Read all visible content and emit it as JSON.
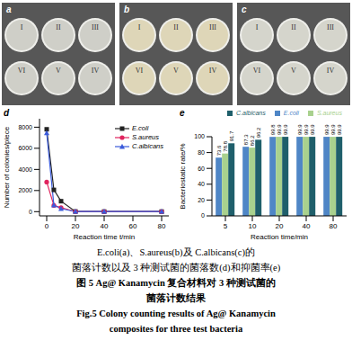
{
  "photos": [
    {
      "panel_label": "a",
      "dishes": [
        "I",
        "II",
        "III",
        "VI",
        "V",
        "IV"
      ]
    },
    {
      "panel_label": "b",
      "dishes": [
        "I",
        "II",
        "III",
        "VI",
        "V",
        "IV"
      ]
    },
    {
      "panel_label": "c",
      "dishes": [
        "I",
        "II",
        "III",
        "VI",
        "V",
        "IV"
      ]
    }
  ],
  "chart_data": [
    {
      "panel_label": "d",
      "type": "line",
      "x": [
        0,
        5,
        10,
        20,
        40,
        80
      ],
      "xlim": [
        -5,
        85
      ],
      "xticks": [
        0,
        20,
        40,
        60,
        80
      ],
      "ylim": [
        -400,
        8800
      ],
      "yticks": [
        0,
        2000,
        4000,
        6000,
        8000
      ],
      "x_label": "Reaction time t/min",
      "y_label": "Number of colonies/piece",
      "grid": false,
      "legend": "upper right",
      "series": [
        {
          "name": "E.coli",
          "color": "#222222",
          "marker": "square",
          "values": [
            7800,
            2060,
            990,
            16,
            8,
            8
          ]
        },
        {
          "name": "S.aureus",
          "color": "#e0245e",
          "marker": "circle",
          "values": [
            2800,
            590,
            390,
            3,
            3,
            3
          ]
        },
        {
          "name": "C.albicans",
          "color": "#3b5bdb",
          "marker": "triangle",
          "values": [
            7450,
            620,
            280,
            7,
            7,
            7
          ]
        }
      ]
    },
    {
      "panel_label": "e",
      "type": "bar",
      "categories": [
        "5",
        "10",
        "20",
        "40",
        "80"
      ],
      "ylim": [
        0,
        100
      ],
      "yticks": [
        0,
        20,
        40,
        60,
        80,
        100
      ],
      "x_label": "Reaction time/min",
      "y_label": "Bacteriostatic rate/%",
      "grid": false,
      "legend": "upper center",
      "data_labels": true,
      "series": [
        {
          "name": "E.coli",
          "color": "#4f86c6",
          "values": [
            73.6,
            87.3,
            99.8,
            99.9,
            99.9
          ]
        },
        {
          "name": "S.aureus",
          "color": "#a9d18e",
          "values": [
            78.8,
            86.2,
            99.9,
            99.9,
            99.9
          ]
        },
        {
          "name": "C.albicans",
          "color": "#1f5f6b",
          "values": [
            91.7,
            96.2,
            99.9,
            99.9,
            99.9
          ]
        }
      ]
    }
  ],
  "caption": [
    "E.coli(a)、S.aureus(b)及 C.albicans(c)的",
    "菌落计数以及 3 种测试菌的菌落数(d)和抑菌率(e)",
    "图 5   Ag@ Kanamycin 复合材料对 3 种测试菌的",
    "菌落计数结果",
    "Fig.5   Colony counting results of Ag@ Kanamycin",
    "composites for three test bacteria"
  ]
}
